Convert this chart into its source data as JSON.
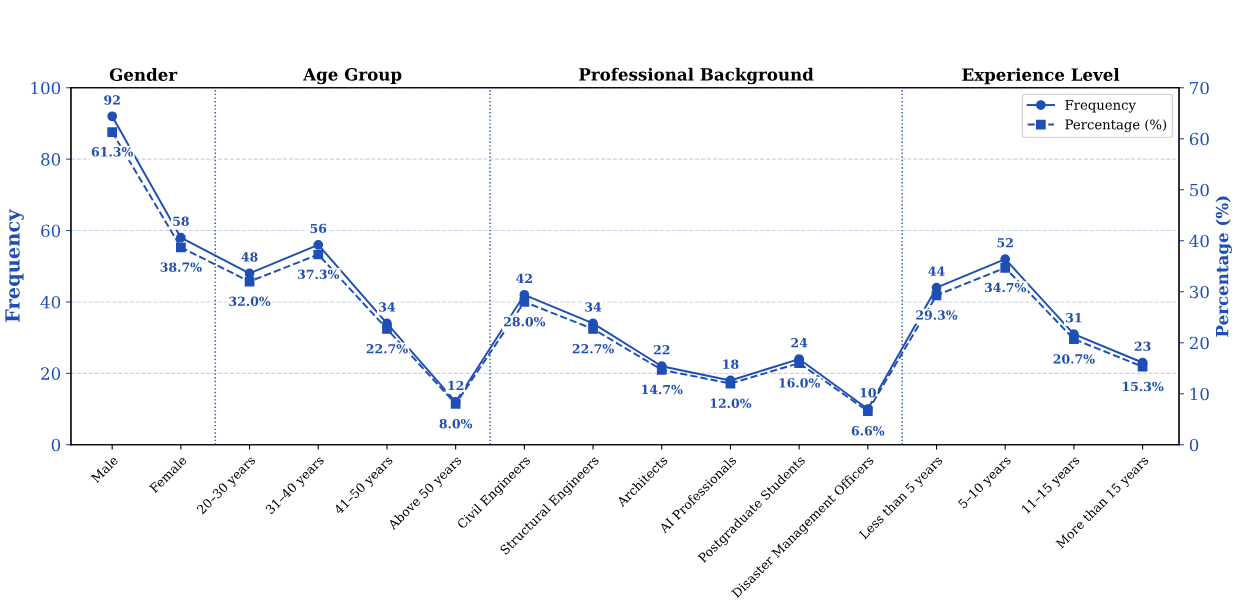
{
  "chart_data": {
    "type": "line",
    "categories": [
      "Male",
      "Female",
      "20–30 years",
      "31–40 years",
      "41–50 years",
      "Above 50 years",
      "Civil Engineers",
      "Structural Engineers",
      "Architects",
      "AI Professionals",
      "Postgraduate Students",
      "Disaster Management Officers",
      "Less than 5 years",
      "5–10 years",
      "11–15 years",
      "More than 15 years"
    ],
    "series": [
      {
        "name": "Frequency",
        "color": "#1f4fb4",
        "marker": "circle",
        "line_style": "solid",
        "values": [
          92,
          58,
          48,
          56,
          34,
          12,
          42,
          34,
          22,
          18,
          24,
          10,
          44,
          52,
          31,
          23
        ],
        "value_labels": [
          "92",
          "58",
          "48",
          "56",
          "34",
          "12",
          "42",
          "34",
          "22",
          "18",
          "24",
          "10",
          "44",
          "52",
          "31",
          "23"
        ]
      },
      {
        "name": "Percentage (%)",
        "color": "#1f4fb4",
        "marker": "square",
        "line_style": "dashed",
        "axis": "y2",
        "values": [
          61.3,
          38.7,
          32.0,
          37.3,
          22.7,
          8.0,
          28.0,
          22.7,
          14.7,
          12.0,
          16.0,
          6.6,
          29.3,
          34.7,
          20.7,
          15.3
        ],
        "value_labels": [
          "61.3%",
          "38.7%",
          "32.0%",
          "37.3%",
          "22.7%",
          "8.0%",
          "28.0%",
          "22.7%",
          "14.7%",
          "12.0%",
          "16.0%",
          "6.6%",
          "29.3%",
          "34.7%",
          "20.7%",
          "15.3%"
        ]
      }
    ],
    "ylabel": "Frequency",
    "y2label": "Percentage (%)",
    "ylim": [
      0,
      100
    ],
    "yticks": [
      0,
      20,
      40,
      60,
      80,
      100
    ],
    "y2lim": [
      0,
      70
    ],
    "y2ticks": [
      0,
      10,
      20,
      30,
      40,
      50,
      60,
      70
    ],
    "annotations": [
      "Gender",
      "Age Group",
      "Professional Background",
      "Experience Level"
    ],
    "grid": "y",
    "legend": "top right"
  }
}
